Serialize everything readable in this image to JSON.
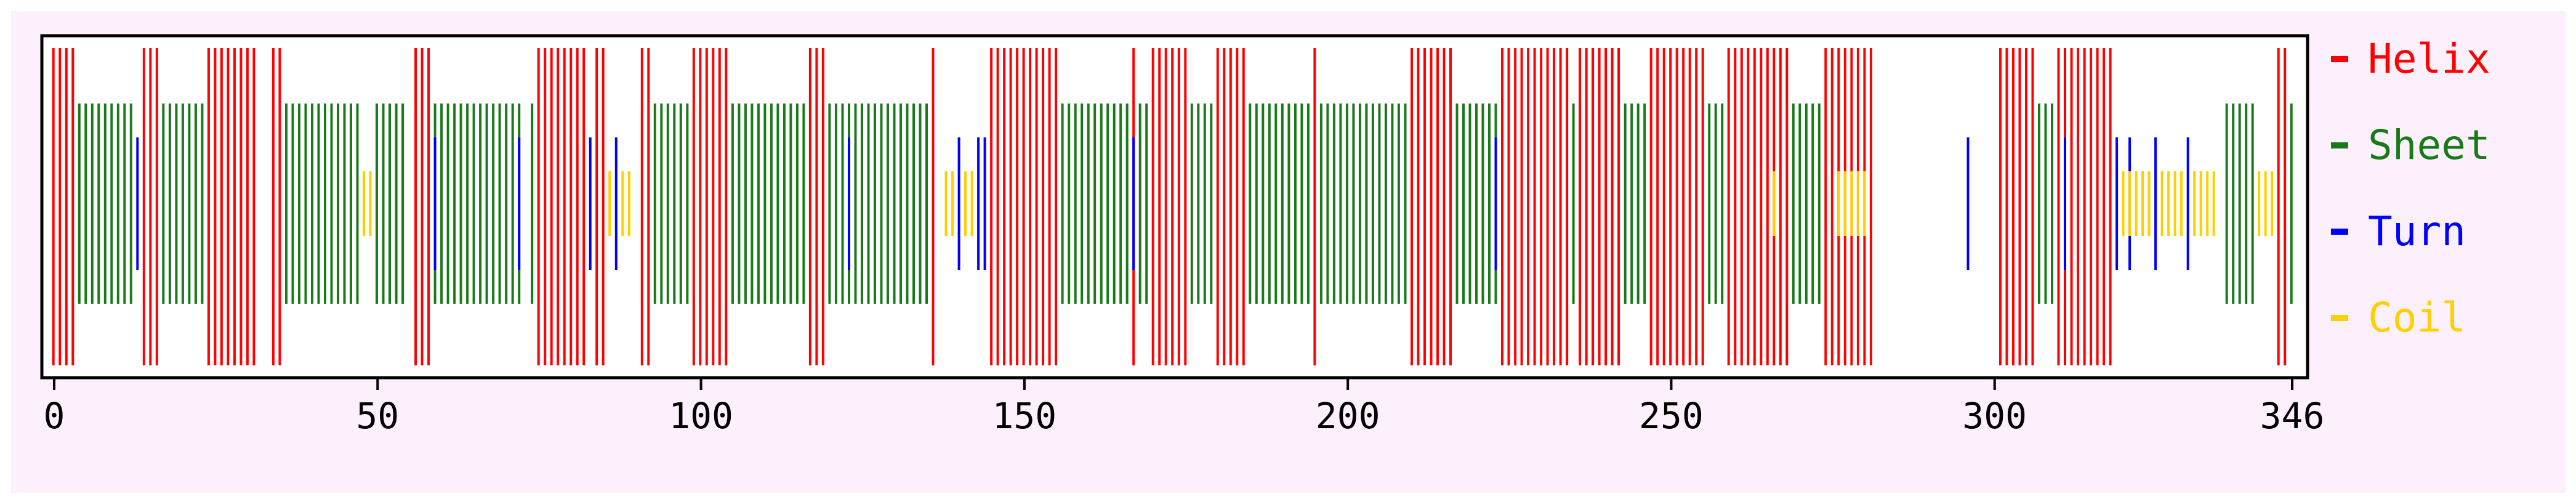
{
  "chart_data": {
    "type": "bar",
    "title": "",
    "xlabel": "",
    "ylabel": "",
    "xlim": [
      0,
      346
    ],
    "xticks": [
      0,
      50,
      100,
      150,
      200,
      250,
      300,
      346
    ],
    "grid": false,
    "legend_position": "right",
    "series": [
      {
        "name": "Helix",
        "color": "#ff0000",
        "level": "tall",
        "segments": [
          [
            0,
            3
          ],
          [
            14,
            16
          ],
          [
            24,
            31
          ],
          [
            34,
            35
          ],
          [
            56,
            58
          ],
          [
            75,
            82
          ],
          [
            84,
            85
          ],
          [
            91,
            92
          ],
          [
            99,
            104
          ],
          [
            117,
            119
          ],
          [
            136,
            136
          ],
          [
            145,
            155
          ],
          [
            167,
            167
          ],
          [
            170,
            175
          ],
          [
            180,
            184
          ],
          [
            195,
            195
          ],
          [
            210,
            216
          ],
          [
            224,
            234
          ],
          [
            236,
            242
          ],
          [
            247,
            255
          ],
          [
            259,
            268
          ],
          [
            274,
            281
          ],
          [
            301,
            306
          ],
          [
            310,
            318
          ],
          [
            344,
            345
          ]
        ]
      },
      {
        "name": "Sheet",
        "color": "#1a7a1a",
        "level": "medium",
        "segments": [
          [
            4,
            12
          ],
          [
            17,
            23
          ],
          [
            36,
            47
          ],
          [
            50,
            54
          ],
          [
            59,
            72
          ],
          [
            74,
            74
          ],
          [
            93,
            98
          ],
          [
            105,
            116
          ],
          [
            120,
            135
          ],
          [
            156,
            166
          ],
          [
            168,
            169
          ],
          [
            176,
            179
          ],
          [
            185,
            194
          ],
          [
            196,
            209
          ],
          [
            217,
            223
          ],
          [
            235,
            235
          ],
          [
            243,
            246
          ],
          [
            256,
            258
          ],
          [
            269,
            273
          ],
          [
            307,
            309
          ],
          [
            336,
            340
          ],
          [
            346,
            346
          ]
        ]
      },
      {
        "name": "Turn",
        "color": "#0000ff",
        "level": "short",
        "segments": [
          [
            13,
            13
          ],
          [
            59,
            59
          ],
          [
            72,
            72
          ],
          [
            83,
            83
          ],
          [
            87,
            87
          ],
          [
            123,
            123
          ],
          [
            140,
            140
          ],
          [
            143,
            144
          ],
          [
            167,
            167
          ],
          [
            223,
            223
          ],
          [
            296,
            296
          ],
          [
            311,
            311
          ],
          [
            319,
            319
          ],
          [
            321,
            321
          ],
          [
            325,
            325
          ],
          [
            330,
            330
          ]
        ]
      },
      {
        "name": "Coil",
        "color": "#ffd000",
        "level": "shortest",
        "segments": [
          [
            48,
            49
          ],
          [
            86,
            86
          ],
          [
            88,
            89
          ],
          [
            138,
            139
          ],
          [
            141,
            142
          ],
          [
            266,
            266
          ],
          [
            276,
            280
          ],
          [
            320,
            321
          ],
          [
            322,
            324
          ],
          [
            326,
            329
          ],
          [
            331,
            334
          ],
          [
            341,
            343
          ]
        ]
      }
    ],
    "tick_labels": [
      "0",
      "50",
      "100",
      "150",
      "200",
      "250",
      "300",
      "346"
    ],
    "legend": [
      {
        "label": "Helix",
        "color": "#ff0000"
      },
      {
        "label": "Sheet",
        "color": "#1a7a1a"
      },
      {
        "label": "Turn",
        "color": "#0000ff"
      },
      {
        "label": "Coil",
        "color": "#ffd000"
      }
    ]
  }
}
